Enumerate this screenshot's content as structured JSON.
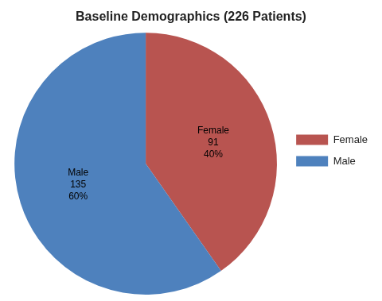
{
  "chart_data": {
    "type": "pie",
    "title": "Baseline Demographics (226 Patients)",
    "categories": [
      "Female",
      "Male"
    ],
    "values": [
      91,
      135
    ],
    "percentages": [
      40,
      60
    ],
    "percentage_labels": [
      "40%",
      "60%"
    ],
    "colors": [
      "#B85450",
      "#4E81BD"
    ],
    "data_labels": true,
    "legend": "right"
  }
}
